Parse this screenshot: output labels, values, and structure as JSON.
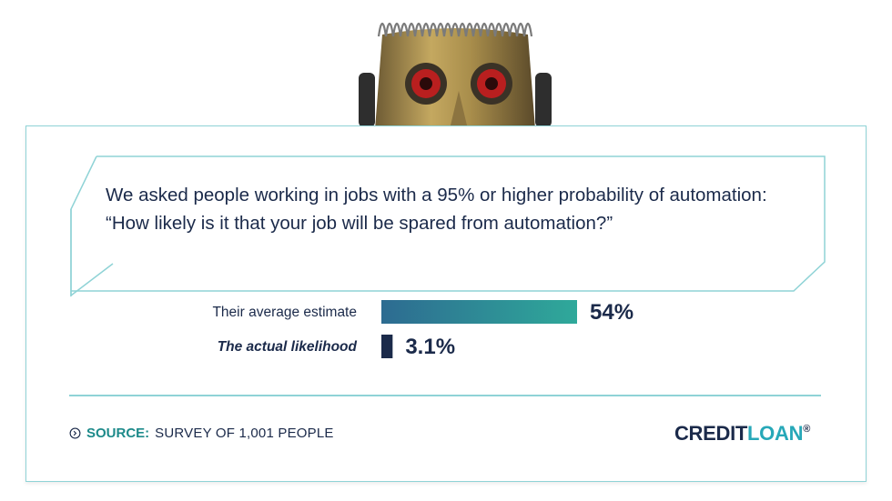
{
  "question": "We asked people working in jobs with a 95% or higher probability of automation: “How likely is it that your job will be spared from automation?”",
  "chart_data": {
    "type": "bar",
    "orientation": "horizontal",
    "categories": [
      "Their average estimate",
      "The actual likelihood"
    ],
    "values": [
      54,
      3.1
    ],
    "value_labels": [
      "54%",
      "3.1%"
    ],
    "xlim": [
      0,
      100
    ],
    "grid": false,
    "colors": {
      "bar_gradient_start": "#2d6b91",
      "bar_gradient_end": "#2fa99a",
      "bar_actual": "#1b2a4a"
    }
  },
  "footer": {
    "source_label": "SOURCE:",
    "source_text": "SURVEY OF 1,001 PEOPLE",
    "logo_part1": "CREDIT",
    "logo_part2": "LOAN",
    "logo_mark": "®"
  },
  "icons": {
    "robot": "robot-head-icon",
    "source": "chevron-circle-icon"
  },
  "colors": {
    "border": "#8fd3d6",
    "text": "#1b2a4a",
    "accent": "#27a8b8"
  }
}
